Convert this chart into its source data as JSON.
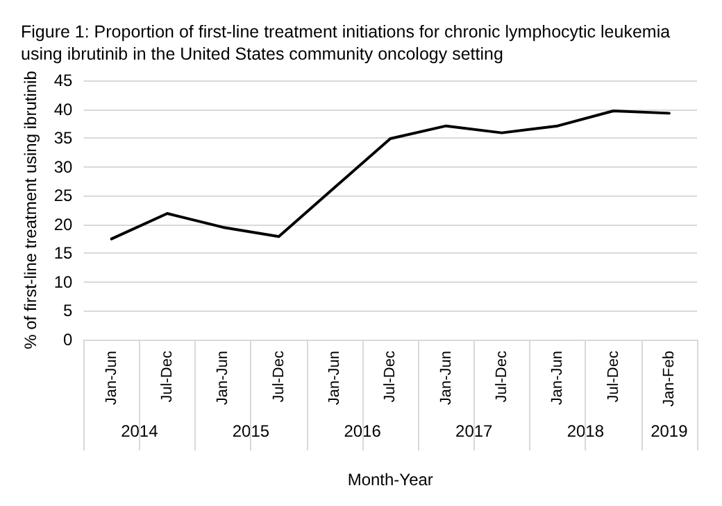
{
  "chart_data": {
    "type": "line",
    "title": "Figure 1: Proportion of first-line treatment initiations for chronic lymphocytic leukemia\nusing ibrutinib in the United States community oncology setting",
    "xlabel": "Month-Year",
    "ylabel": "% of first-line treatment using ibrutinib",
    "categories": [
      "Jan-Jun",
      "Jul-Dec",
      "Jan-Jun",
      "Jul-Dec",
      "Jan-Jun",
      "Jul-Dec",
      "Jan-Jun",
      "Jul-Dec",
      "Jan-Jun",
      "Jul-Dec",
      "Jan-Feb"
    ],
    "series": [
      {
        "color": "#000000",
        "values": [
          17.5,
          21.9,
          19.5,
          17.9,
          26.4,
          34.9,
          37.1,
          35.9,
          37.1,
          39.7,
          39.3
        ]
      }
    ],
    "annotations": [
      "2014",
      "2015",
      "2016",
      "2017",
      "2018",
      "2019"
    ],
    "ylim": [
      0,
      45
    ],
    "yticks": [
      0,
      5,
      10,
      15,
      20,
      25,
      30,
      35,
      40,
      45
    ],
    "grid": "y",
    "marker": "none",
    "line_style": "solid"
  }
}
